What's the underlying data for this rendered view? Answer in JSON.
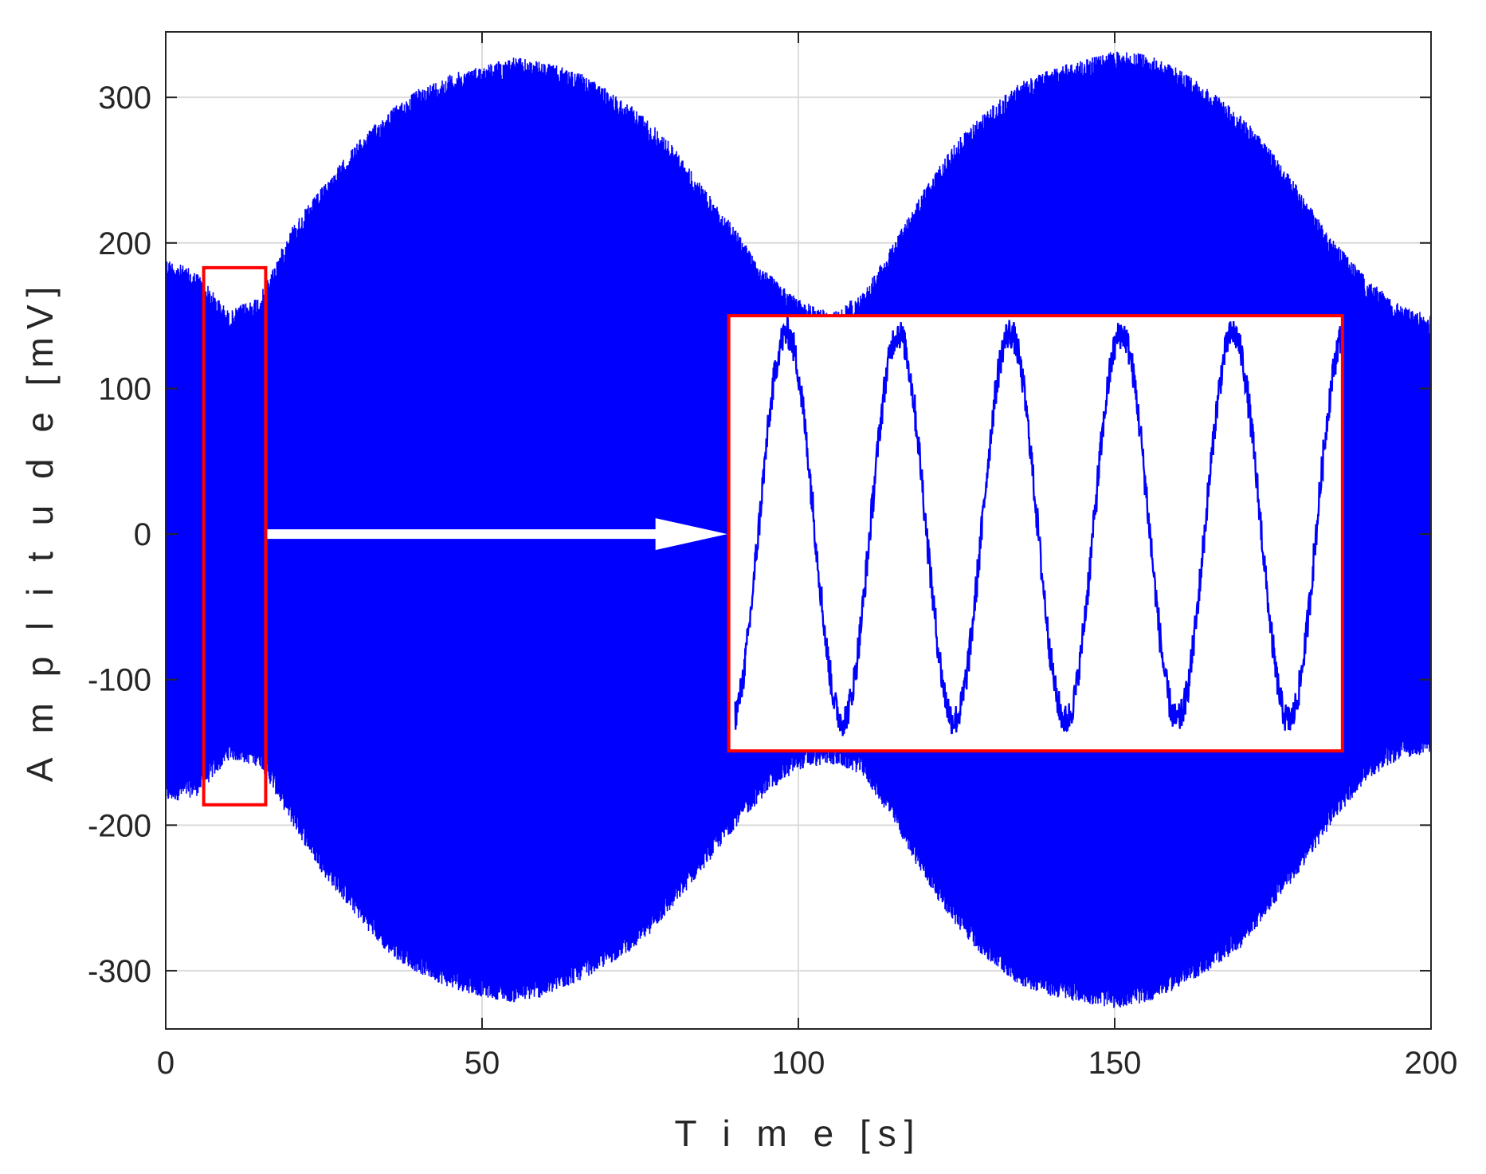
{
  "chart_data": {
    "type": "line",
    "title": "",
    "xlabel": "T i m e [s]",
    "ylabel": "A m p l i t u d e [mV]",
    "xlim": [
      0,
      200
    ],
    "ylim": [
      -340,
      345
    ],
    "xticks": [
      0,
      50,
      100,
      150,
      200
    ],
    "xtick_labels": [
      "0",
      "50",
      "100",
      "150",
      "200"
    ],
    "yticks": [
      -300,
      -200,
      -100,
      0,
      100,
      200,
      300
    ],
    "ytick_labels": [
      "-300",
      "-200",
      "-100",
      "0",
      "100",
      "200",
      "300"
    ],
    "grid": true,
    "series": [
      {
        "color": "#0000ff",
        "envelope": {
          "t": [
            0,
            5,
            10,
            15,
            20,
            25,
            30,
            35,
            40,
            45,
            50,
            55,
            60,
            65,
            70,
            75,
            80,
            85,
            90,
            95,
            100,
            105,
            110,
            115,
            120,
            125,
            130,
            135,
            140,
            145,
            150,
            155,
            160,
            165,
            170,
            175,
            180,
            185,
            190,
            195,
            200
          ],
          "max": [
            190,
            180,
            153,
            165,
            212,
            240,
            268,
            290,
            306,
            316,
            322,
            328,
            324,
            318,
            305,
            290,
            268,
            238,
            210,
            180,
            162,
            152,
            165,
            200,
            238,
            270,
            292,
            310,
            320,
            326,
            332,
            330,
            320,
            305,
            288,
            262,
            232,
            200,
            175,
            158,
            150
          ],
          "min": [
            -185,
            -180,
            -155,
            -160,
            -200,
            -235,
            -262,
            -288,
            -302,
            -312,
            -318,
            -322,
            -318,
            -308,
            -296,
            -282,
            -258,
            -230,
            -202,
            -178,
            -162,
            -158,
            -165,
            -198,
            -238,
            -270,
            -294,
            -310,
            -318,
            -322,
            -326,
            -322,
            -312,
            -300,
            -284,
            -256,
            -228,
            -195,
            -168,
            -155,
            -150
          ]
        }
      }
    ],
    "annotations": {
      "highlight_box": {
        "x": [
          6,
          15.8
        ],
        "y": [
          -186,
          183
        ],
        "color": "#ff0000"
      },
      "arrow": {
        "from": [
          15.8,
          0
        ],
        "to": [
          89,
          0
        ],
        "color": "#ffffff"
      },
      "inset": {
        "x": [
          89,
          186
        ],
        "y": [
          -149,
          150
        ],
        "border_color": "#ff0000",
        "background": "#ffffff",
        "cycles": 5.5,
        "amplitude_mV": 133,
        "offset_mV": 5
      }
    }
  }
}
